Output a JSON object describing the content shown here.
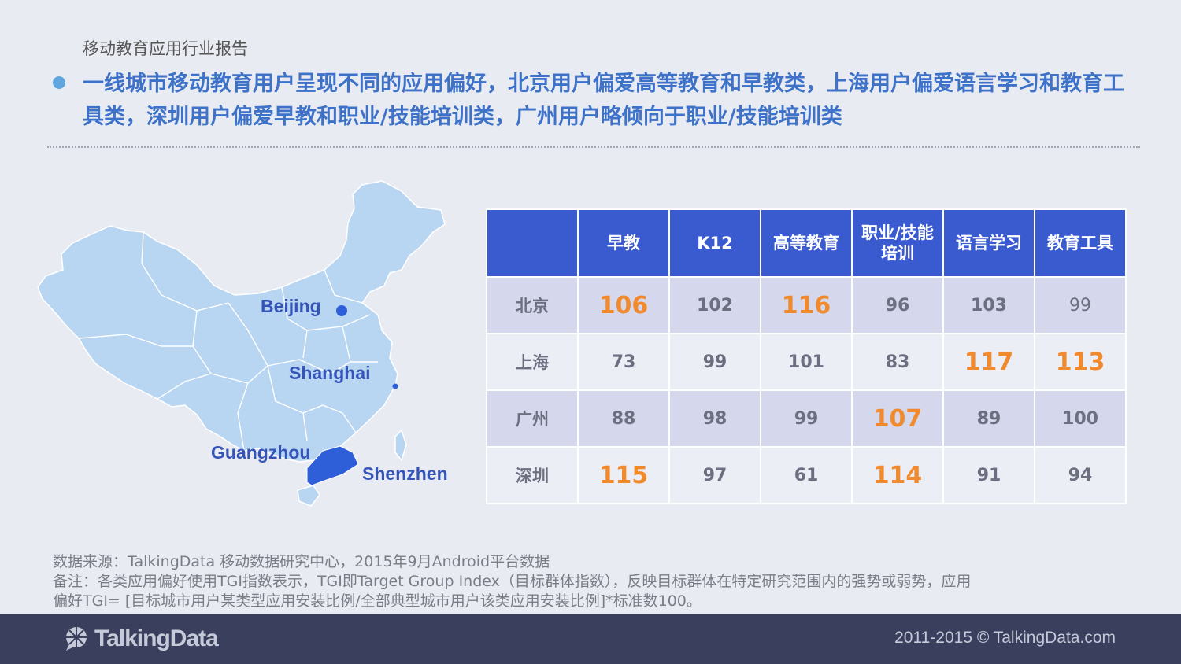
{
  "report_title": "移动教育应用行业报告",
  "headline": "一线城市移动教育用户呈现不同的应用偏好，北京用户偏爱高等教育和早教类，上海用户偏爱语言学习和教育工具类，深圳用户偏爱早教和职业/技能培训类，广州用户略倾向于职业/技能培训类",
  "map": {
    "labels": {
      "beijing": "Beijing",
      "shanghai": "Shanghai",
      "guangzhou": "Guangzhou",
      "shenzhen": "Shenzhen"
    },
    "colors": {
      "land": "#b8d6f2",
      "border": "#ffffff",
      "highlight": "#2f5fd8"
    }
  },
  "table": {
    "headers": [
      "早教",
      "K12",
      "高等教育",
      "职业/技能培训",
      "语言学习",
      "教育工具"
    ],
    "header_lines": {
      "vocational_line1": "职业/技能",
      "vocational_line2": "培训"
    },
    "rows": [
      {
        "city": "北京",
        "values": [
          "106",
          "102",
          "116",
          "96",
          "103",
          "99"
        ]
      },
      {
        "city": "上海",
        "values": [
          "73",
          "99",
          "101",
          "83",
          "117",
          "113"
        ]
      },
      {
        "city": "广州",
        "values": [
          "88",
          "98",
          "99",
          "107",
          "89",
          "100"
        ]
      },
      {
        "city": "深圳",
        "values": [
          "115",
          "97",
          "61",
          "114",
          "91",
          "94"
        ]
      }
    ],
    "highlight_color": "#f08a2c",
    "header_color": "#3a5bd0"
  },
  "notes": {
    "source": "数据来源：TalkingData 移动数据研究中心，2015年9月Android平台数据",
    "remark_line1": "备注：各类应用偏好使用TGI指数表示，TGI即Target Group Index（目标群体指数），反映目标群体在特定研究范围内的强势或弱势，应用",
    "remark_line2": "偏好TGI= [目标城市用户某类型应用安装比例/全部典型城市用户该类应用安装比例]*标准数100。"
  },
  "footer": {
    "logo_text": "TalkingData",
    "copyright": "2011-2015 © TalkingData.com"
  }
}
